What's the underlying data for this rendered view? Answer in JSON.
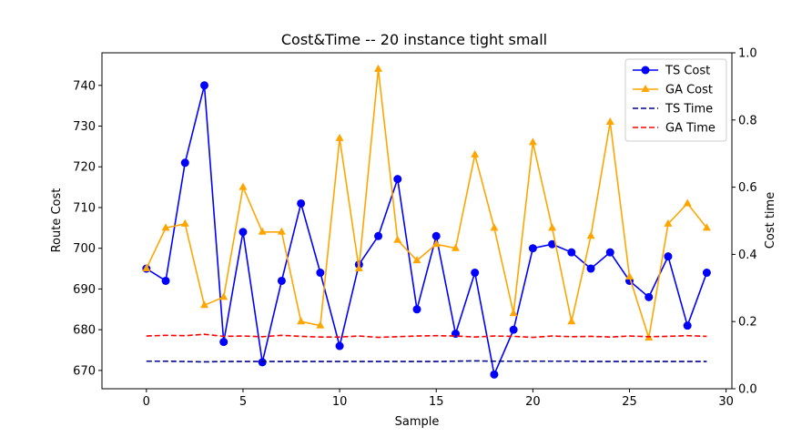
{
  "chart_data": {
    "type": "line",
    "title": "Cost&Time -- 20 instance tight small",
    "xlabel": "Sample",
    "ylabel": "Route Cost",
    "y2label": "Cost time",
    "x": [
      0,
      1,
      2,
      3,
      4,
      5,
      6,
      7,
      8,
      9,
      10,
      11,
      12,
      13,
      14,
      15,
      16,
      17,
      18,
      19,
      20,
      21,
      22,
      23,
      24,
      25,
      26,
      27,
      28,
      29
    ],
    "xlim": [
      -2.3,
      30.3
    ],
    "ylim": [
      665.5,
      748
    ],
    "y2lim": [
      0.0,
      1.0
    ],
    "xticks": [
      0,
      5,
      10,
      15,
      20,
      25,
      30
    ],
    "yticks": [
      670,
      680,
      690,
      700,
      710,
      720,
      730,
      740
    ],
    "y2ticks": [
      0.0,
      0.2,
      0.4,
      0.6,
      0.8,
      1.0
    ],
    "y2tick_labels": [
      "0.0",
      "0.2",
      "0.4",
      "0.6",
      "0.8",
      "1.0"
    ],
    "grid": false,
    "legend_position": "top-right",
    "series": [
      {
        "name": "TS Cost",
        "axis": "left",
        "color": "#0000ff",
        "style": "solid",
        "marker": "circle",
        "values": [
          695,
          692,
          721,
          740,
          677,
          704,
          672,
          692,
          711,
          694,
          676,
          696,
          703,
          717,
          685,
          703,
          679,
          694,
          669,
          680,
          700,
          701,
          699,
          695,
          699,
          692,
          688,
          698,
          681,
          694
        ]
      },
      {
        "name": "GA Cost",
        "axis": "left",
        "color": "#ffa500",
        "style": "solid",
        "marker": "triangle",
        "values": [
          695,
          705,
          706,
          686,
          688,
          715,
          704,
          704,
          682,
          681,
          727,
          695,
          744,
          702,
          697,
          701,
          700,
          723,
          705,
          684,
          726,
          705,
          682,
          703,
          731,
          693,
          678,
          706,
          711,
          705
        ]
      },
      {
        "name": "TS Time",
        "axis": "right",
        "color": "#00008b",
        "style": "dashed",
        "marker": "none",
        "values": [
          0.082,
          0.082,
          0.081,
          0.08,
          0.081,
          0.081,
          0.081,
          0.081,
          0.081,
          0.081,
          0.081,
          0.081,
          0.081,
          0.081,
          0.081,
          0.081,
          0.082,
          0.083,
          0.082,
          0.082,
          0.082,
          0.082,
          0.082,
          0.081,
          0.081,
          0.081,
          0.081,
          0.081,
          0.081,
          0.081
        ]
      },
      {
        "name": "GA Time",
        "axis": "right",
        "color": "#ff0000",
        "style": "dashed",
        "marker": "none",
        "values": [
          0.157,
          0.159,
          0.158,
          0.162,
          0.156,
          0.157,
          0.155,
          0.159,
          0.156,
          0.154,
          0.154,
          0.157,
          0.153,
          0.155,
          0.157,
          0.158,
          0.157,
          0.154,
          0.157,
          0.156,
          0.153,
          0.157,
          0.155,
          0.156,
          0.154,
          0.157,
          0.155,
          0.156,
          0.158,
          0.156
        ]
      }
    ]
  }
}
